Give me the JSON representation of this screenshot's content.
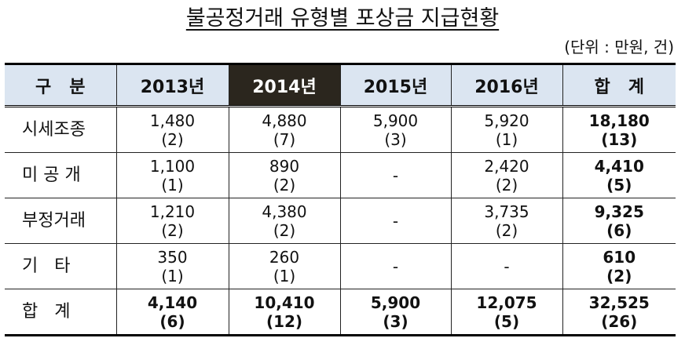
{
  "title": "불공정거래 유형별 포상금 지급현황",
  "unit": "(단위 : 만원, 건)",
  "header": {
    "category": "구   분",
    "years": [
      "2013년",
      "2014년",
      "2015년",
      "2016년"
    ],
    "total": "합   계"
  },
  "rows": [
    {
      "label": "시세조종",
      "cells": [
        {
          "amount": "1,480",
          "count": "(2)"
        },
        {
          "amount": "4,880",
          "count": "(7)"
        },
        {
          "amount": "5,900",
          "count": "(3)"
        },
        {
          "amount": "5,920",
          "count": "(1)"
        }
      ],
      "total": {
        "amount": "18,180",
        "count": "(13)"
      }
    },
    {
      "label": "미 공 개",
      "cells": [
        {
          "amount": "1,100",
          "count": "(1)"
        },
        {
          "amount": "890",
          "count": "(2)"
        },
        {
          "amount": "-",
          "count": ""
        },
        {
          "amount": "2,420",
          "count": "(2)"
        }
      ],
      "total": {
        "amount": "4,410",
        "count": "(5)"
      }
    },
    {
      "label": "부정거래",
      "cells": [
        {
          "amount": "1,210",
          "count": "(2)"
        },
        {
          "amount": "4,380",
          "count": "(2)"
        },
        {
          "amount": "-",
          "count": ""
        },
        {
          "amount": "3,735",
          "count": "(2)"
        }
      ],
      "total": {
        "amount": "9,325",
        "count": "(6)"
      }
    },
    {
      "label": "기   타",
      "cells": [
        {
          "amount": "350",
          "count": "(1)"
        },
        {
          "amount": "260",
          "count": "(1)"
        },
        {
          "amount": "-",
          "count": ""
        },
        {
          "amount": "-",
          "count": ""
        }
      ],
      "total": {
        "amount": "610",
        "count": "(2)"
      }
    }
  ],
  "total_row": {
    "label": "합   계",
    "cells": [
      {
        "amount": "4,140",
        "count": "(6)"
      },
      {
        "amount": "10,410",
        "count": "(12)"
      },
      {
        "amount": "5,900",
        "count": "(3)"
      },
      {
        "amount": "12,075",
        "count": "(5)"
      }
    ],
    "total": {
      "amount": "32,525",
      "count": "(26)"
    }
  },
  "colors": {
    "header_bg": "#dbe5f1",
    "highlight_bg": "#2b261e",
    "highlight_text": "#ffffff"
  }
}
